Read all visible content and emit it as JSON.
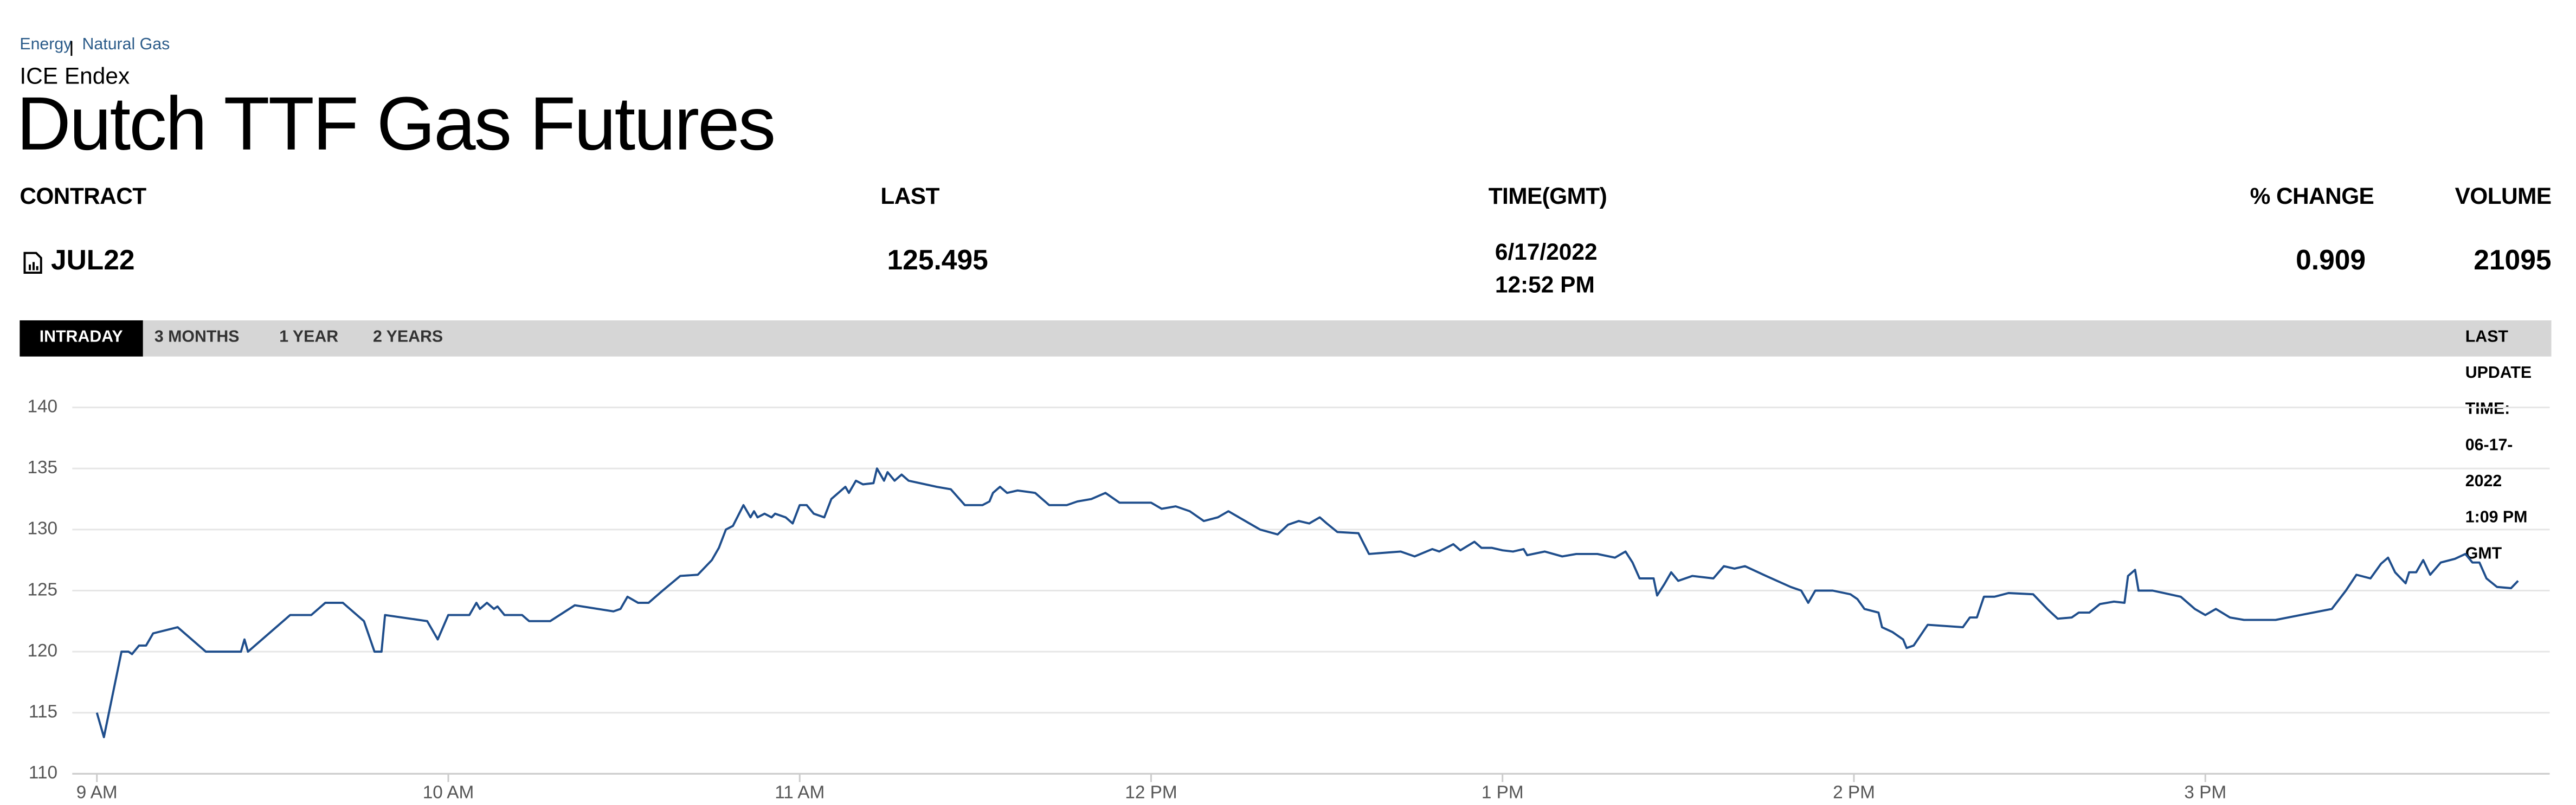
{
  "breadcrumb": [
    "Energy",
    "Natural Gas"
  ],
  "exchange": "ICE Endex",
  "title": "Dutch TTF Gas Futures",
  "table": {
    "columns": [
      "CONTRACT",
      "LAST",
      "TIME(GMT)",
      "% CHANGE",
      "VOLUME"
    ],
    "row": {
      "contract": "JUL22",
      "last": 125.495,
      "date": "6/17/2022",
      "time": "12:52 PM",
      "change": 0.909,
      "volume": 21095
    }
  },
  "tabs": [
    "INTRADAY",
    "3 MONTHS",
    "1 YEAR",
    "2 YEARS"
  ],
  "active_tab": 0,
  "last_update": "LAST UPDATE TIME: 06-17-2022 1:09 PM GMT",
  "chart_data": {
    "type": "line",
    "color": "#1f4e8c",
    "grid": true,
    "xlim": [
      8.93,
      15.98
    ],
    "ylim": [
      110,
      140
    ],
    "yticks": [
      110,
      115,
      120,
      125,
      130,
      135,
      140
    ],
    "xticks": [
      {
        "value": 9,
        "label": "9 AM"
      },
      {
        "value": 10,
        "label": "10 AM"
      },
      {
        "value": 11,
        "label": "11 AM"
      },
      {
        "value": 12,
        "label": "12 PM"
      },
      {
        "value": 13,
        "label": "1 PM"
      },
      {
        "value": 14,
        "label": "2 PM"
      },
      {
        "value": 15,
        "label": "3 PM"
      }
    ],
    "x": [
      9.0,
      9.02,
      9.07,
      9.09,
      9.1,
      9.12,
      9.14,
      9.16,
      9.23,
      9.31,
      9.41,
      9.42,
      9.43,
      9.55,
      9.61,
      9.65,
      9.7,
      9.76,
      9.79,
      9.81,
      9.82,
      9.94,
      9.97,
      10.0,
      10.06,
      10.08,
      10.09,
      10.11,
      10.13,
      10.14,
      10.16,
      10.21,
      10.23,
      10.29,
      10.36,
      10.47,
      10.49,
      10.51,
      10.54,
      10.57,
      10.61,
      10.66,
      10.71,
      10.75,
      10.77,
      10.79,
      10.81,
      10.84,
      10.86,
      10.87,
      10.88,
      10.9,
      10.92,
      10.93,
      10.96,
      10.98,
      11.0,
      11.02,
      11.04,
      11.07,
      11.09,
      11.11,
      11.13,
      11.14,
      11.16,
      11.18,
      11.21,
      11.22,
      11.24,
      11.25,
      11.27,
      11.29,
      11.31,
      11.39,
      11.43,
      11.47,
      11.52,
      11.54,
      11.55,
      11.57,
      11.59,
      11.62,
      11.67,
      11.71,
      11.76,
      11.79,
      11.83,
      11.87,
      11.91,
      12.0,
      12.03,
      12.07,
      12.11,
      12.15,
      12.19,
      12.22,
      12.28,
      12.31,
      12.36,
      12.39,
      12.42,
      12.45,
      12.48,
      12.5,
      12.53,
      12.59,
      12.62,
      12.71,
      12.75,
      12.8,
      12.82,
      12.86,
      12.88,
      12.92,
      12.94,
      12.97,
      13.0,
      13.03,
      13.06,
      13.07,
      13.12,
      13.17,
      13.21,
      13.27,
      13.32,
      13.35,
      13.37,
      13.39,
      13.43,
      13.44,
      13.46,
      13.48,
      13.5,
      13.54,
      13.6,
      13.63,
      13.66,
      13.69,
      13.75,
      13.82,
      13.85,
      13.87,
      13.89,
      13.94,
      13.99,
      14.01,
      14.03,
      14.07,
      14.08,
      14.11,
      14.14,
      14.15,
      14.17,
      14.21,
      14.31,
      14.33,
      14.35,
      14.37,
      14.4,
      14.44,
      14.51,
      14.55,
      14.58,
      14.62,
      14.64,
      14.67,
      14.7,
      14.74,
      14.77,
      14.78,
      14.8,
      14.81,
      14.85,
      14.93,
      14.97,
      15.0,
      15.03,
      15.07,
      15.11,
      15.2,
      15.36,
      15.4,
      15.43,
      15.47,
      15.5,
      15.52,
      15.54,
      15.57,
      15.58,
      15.6,
      15.62,
      15.64,
      15.67,
      15.71,
      15.74,
      15.76,
      15.78,
      15.8,
      15.83,
      15.87,
      15.89
    ],
    "values": [
      115,
      113,
      120,
      120,
      119.8,
      120.5,
      120.5,
      121.5,
      122,
      120,
      120,
      121,
      120,
      123,
      123,
      124,
      124,
      122.5,
      120,
      120,
      123,
      122.5,
      121,
      123,
      123,
      124,
      123.5,
      124,
      123.5,
      123.7,
      123,
      123,
      122.5,
      122.5,
      123.8,
      123.3,
      123.5,
      124.5,
      124,
      124,
      125,
      126.2,
      126.3,
      127.5,
      128.5,
      130,
      130.3,
      132,
      131,
      131.5,
      131,
      131.3,
      131,
      131.3,
      131,
      130.5,
      132,
      132,
      131.3,
      131,
      132.5,
      133,
      133.5,
      133,
      134,
      133.7,
      133.8,
      135,
      134,
      134.7,
      134,
      134.5,
      134,
      133.5,
      133.3,
      132,
      132,
      132.3,
      133,
      133.5,
      133,
      133.2,
      133,
      132,
      132,
      132.3,
      132.5,
      133,
      132.2,
      132.2,
      131.7,
      131.9,
      131.5,
      130.7,
      131,
      131.5,
      130.5,
      130,
      129.6,
      130.4,
      130.7,
      130.5,
      131,
      130.5,
      129.8,
      129.7,
      128,
      128.2,
      127.8,
      128.4,
      128.2,
      128.8,
      128.3,
      129,
      128.5,
      128.5,
      128.3,
      128.2,
      128.4,
      127.9,
      128.2,
      127.8,
      128,
      128,
      127.7,
      128.2,
      127.3,
      126,
      126,
      124.6,
      125.5,
      126.5,
      125.8,
      126.2,
      126,
      127,
      126.8,
      127,
      126.2,
      125.3,
      125,
      124,
      125,
      125,
      124.7,
      124.3,
      123.5,
      123.2,
      122,
      121.6,
      121,
      120.3,
      120.5,
      122.2,
      122,
      122.8,
      122.8,
      124.5,
      124.5,
      124.8,
      124.7,
      123.5,
      122.7,
      122.8,
      123.2,
      123.2,
      123.9,
      124.1,
      124,
      126.2,
      126.7,
      125,
      125,
      124.5,
      123.5,
      123,
      123.5,
      122.8,
      122.6,
      122.6,
      123.5,
      125,
      126.3,
      126,
      127.2,
      127.7,
      126.5,
      125.6,
      126.5,
      126.5,
      127.5,
      126.3,
      127.3,
      127.6,
      128,
      127.3,
      127.3,
      126,
      125.3,
      125.2,
      125.8
    ]
  }
}
